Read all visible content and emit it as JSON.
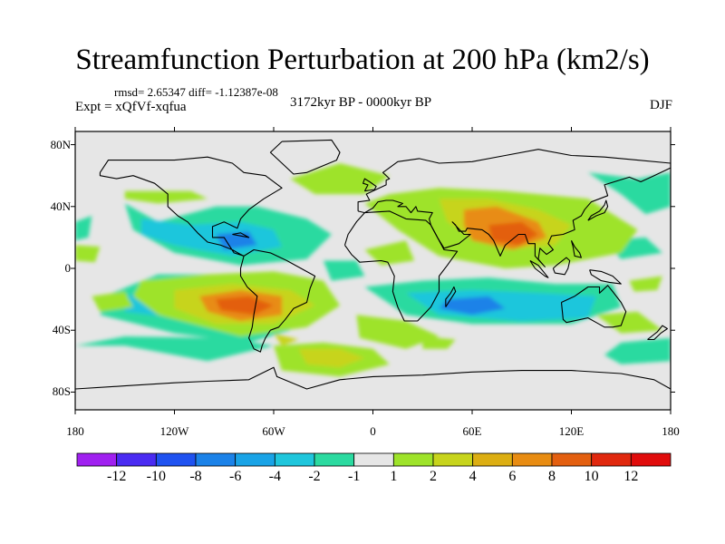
{
  "title": "Streamfunction Perturbation at 200 hPa (km2/s)",
  "stats": "rmsd= 2.65347 diff= -1.12387e-08",
  "experiment": "Expt = xQfVf-xqfua",
  "period": "3172kyr BP - 0000kyr BP",
  "season": "DJF",
  "lat_labels": [
    "80N",
    "40N",
    "0",
    "40S",
    "80S"
  ],
  "lon_labels": [
    "180",
    "120W",
    "60W",
    "0",
    "60E",
    "120E",
    "180"
  ],
  "colorbar": {
    "labels": [
      "-12",
      "-10",
      "-8",
      "-6",
      "-4",
      "-2",
      "-1",
      "1",
      "2",
      "4",
      "6",
      "8",
      "10",
      "12"
    ],
    "colors": [
      "#a020f0",
      "#4a2bf2",
      "#1f52f0",
      "#1b82e8",
      "#19a3e6",
      "#1fc6dc",
      "#2bdaa0",
      "#e6e6e6",
      "#9ee32a",
      "#c7d41c",
      "#dcae12",
      "#e88c12",
      "#e35f10",
      "#e0280e",
      "#e00c0c"
    ]
  },
  "map_colors": {
    "neutral": "#e6e6e6",
    "positive_weak": "#9ee32a",
    "positive_mid": "#c7d41c",
    "positive_strong": "#e88c12",
    "positive_max": "#e35f10",
    "negative_weak": "#2bdaa0",
    "negative_mid": "#1fc6dc",
    "negative_strong": "#1b82e8",
    "coastline": "#000000"
  }
}
